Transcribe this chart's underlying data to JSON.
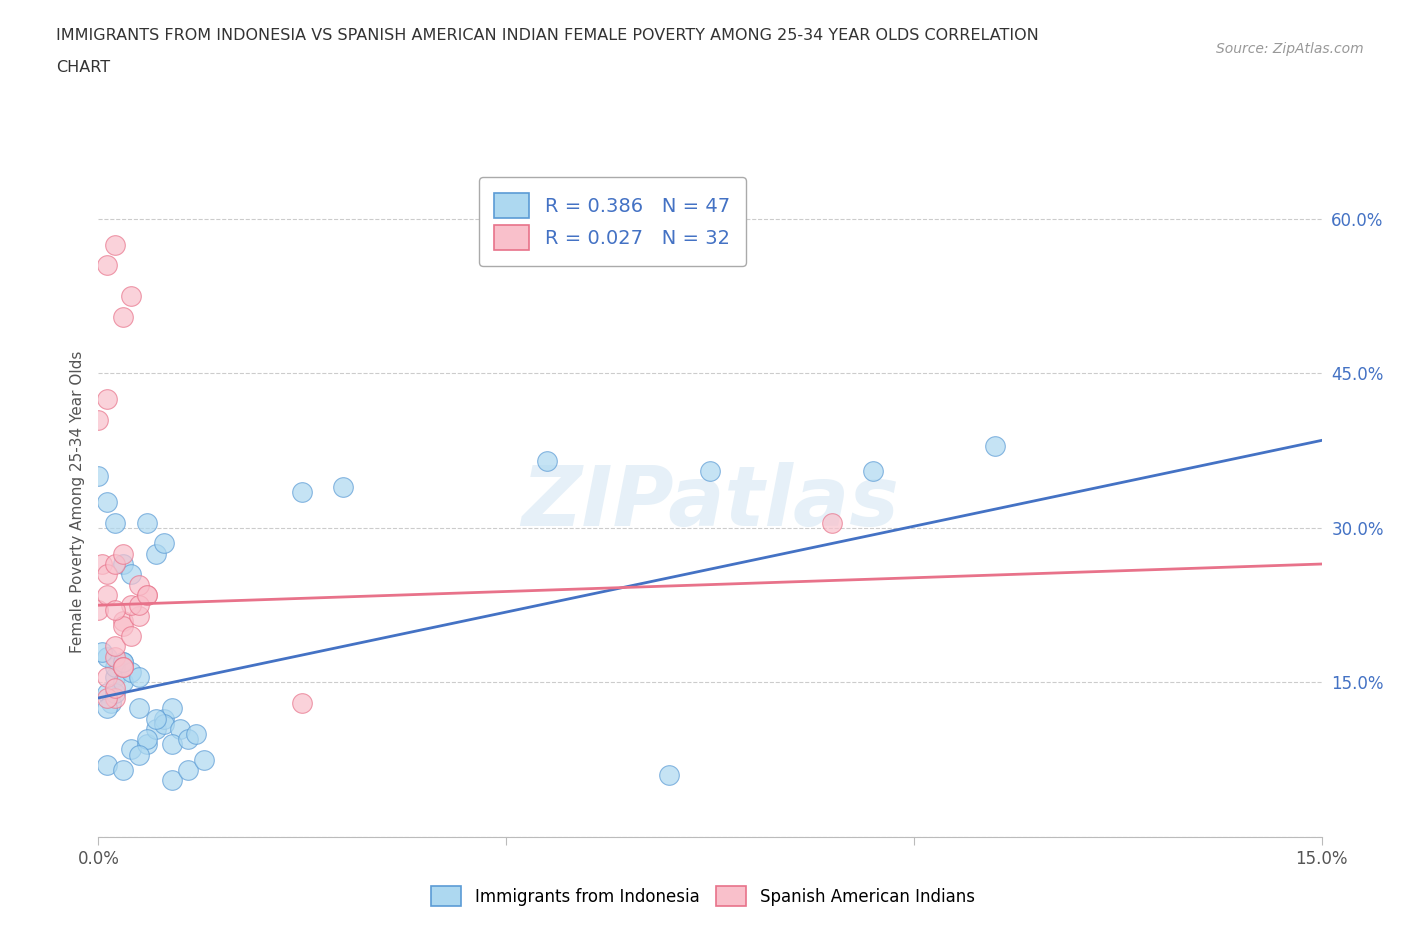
{
  "title_line1": "IMMIGRANTS FROM INDONESIA VS SPANISH AMERICAN INDIAN FEMALE POVERTY AMONG 25-34 YEAR OLDS CORRELATION",
  "title_line2": "CHART",
  "source": "Source: ZipAtlas.com",
  "ylabel": "Female Poverty Among 25-34 Year Olds",
  "xlim": [
    0,
    0.15
  ],
  "ylim": [
    0,
    0.65
  ],
  "blue_color": "#add8f0",
  "blue_edge_color": "#5b9bd5",
  "pink_color": "#f9c0cb",
  "pink_edge_color": "#e8728a",
  "blue_line_color": "#4472c4",
  "pink_line_color": "#e8728a",
  "R_blue": 0.386,
  "N_blue": 47,
  "R_pink": 0.027,
  "N_pink": 32,
  "watermark": "ZIPatlas",
  "legend_label_blue": "Immigrants from Indonesia",
  "legend_label_pink": "Spanish American Indians",
  "blue_scatter_x": [
    0.001,
    0.002,
    0.002,
    0.003,
    0.001,
    0.0005,
    0.0015,
    0.001,
    0.002,
    0.003,
    0.004,
    0.003,
    0.005,
    0.004,
    0.006,
    0.005,
    0.007,
    0.008,
    0.006,
    0.009,
    0.008,
    0.01,
    0.009,
    0.011,
    0.012,
    0.007,
    0.008,
    0.006,
    0.003,
    0.004,
    0.002,
    0.001,
    0.0,
    0.001,
    0.003,
    0.005,
    0.007,
    0.009,
    0.011,
    0.013,
    0.025,
    0.03,
    0.055,
    0.07,
    0.075,
    0.095,
    0.11
  ],
  "blue_scatter_y": [
    0.14,
    0.155,
    0.165,
    0.17,
    0.175,
    0.18,
    0.13,
    0.125,
    0.14,
    0.15,
    0.16,
    0.17,
    0.155,
    0.085,
    0.09,
    0.125,
    0.105,
    0.115,
    0.095,
    0.125,
    0.11,
    0.105,
    0.09,
    0.095,
    0.1,
    0.275,
    0.285,
    0.305,
    0.265,
    0.255,
    0.305,
    0.325,
    0.35,
    0.07,
    0.065,
    0.08,
    0.115,
    0.055,
    0.065,
    0.075,
    0.335,
    0.34,
    0.365,
    0.06,
    0.355,
    0.355,
    0.38
  ],
  "pink_scatter_x": [
    0.0,
    0.001,
    0.0005,
    0.002,
    0.001,
    0.002,
    0.003,
    0.002,
    0.003,
    0.001,
    0.002,
    0.003,
    0.004,
    0.005,
    0.004,
    0.006,
    0.005,
    0.003,
    0.004,
    0.002,
    0.001,
    0.0,
    0.001,
    0.003,
    0.005,
    0.006,
    0.002,
    0.003,
    0.025,
    0.09,
    0.001,
    0.002
  ],
  "pink_scatter_y": [
    0.22,
    0.235,
    0.265,
    0.135,
    0.255,
    0.265,
    0.21,
    0.175,
    0.205,
    0.155,
    0.185,
    0.165,
    0.195,
    0.215,
    0.225,
    0.235,
    0.225,
    0.505,
    0.525,
    0.575,
    0.555,
    0.405,
    0.425,
    0.275,
    0.245,
    0.235,
    0.22,
    0.165,
    0.13,
    0.305,
    0.135,
    0.145
  ],
  "blue_line_x": [
    0.0,
    0.15
  ],
  "blue_line_y": [
    0.135,
    0.385
  ],
  "pink_line_x": [
    0.0,
    0.15
  ],
  "pink_line_y": [
    0.225,
    0.265
  ],
  "grid_color": "#cccccc",
  "background_color": "#ffffff",
  "marker_size": 200
}
